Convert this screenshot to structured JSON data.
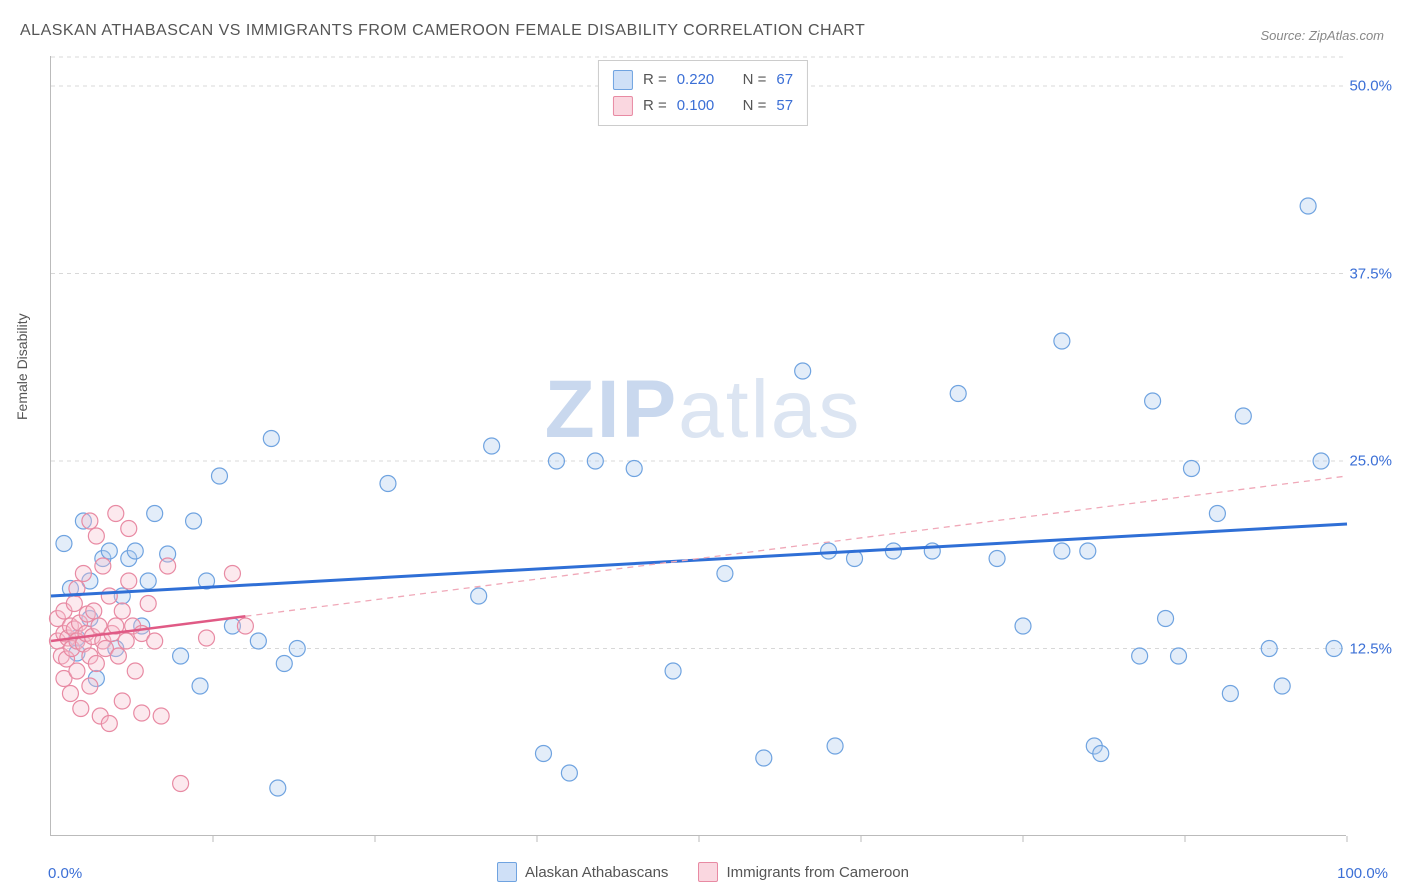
{
  "title": "ALASKAN ATHABASCAN VS IMMIGRANTS FROM CAMEROON FEMALE DISABILITY CORRELATION CHART",
  "source": "Source: ZipAtlas.com",
  "y_axis_label": "Female Disability",
  "watermark_zip": "ZIP",
  "watermark_atlas": "atlas",
  "chart": {
    "type": "scatter",
    "xlim": [
      0,
      100
    ],
    "ylim": [
      0,
      52
    ],
    "y_ticks": [
      12.5,
      25.0,
      37.5,
      50.0
    ],
    "y_tick_labels": [
      "12.5%",
      "25.0%",
      "37.5%",
      "50.0%"
    ],
    "x_ticks": [
      12.5,
      25,
      37.5,
      50,
      62.5,
      75,
      87.5,
      100
    ],
    "x_min_label": "0.0%",
    "x_max_label": "100.0%",
    "background_color": "#ffffff",
    "grid_color": "#d8d8d8",
    "marker_radius": 8,
    "marker_stroke_width": 1.2,
    "marker_fill_opacity": 0.35,
    "series": [
      {
        "name": "Alaskan Athabascans",
        "color_fill": "#aecbef",
        "color_stroke": "#6fa3e0",
        "swatch_fill": "#cfe0f7",
        "swatch_border": "#6fa3e0",
        "r": "0.220",
        "n": "67",
        "trend_color": "#2f6fd6",
        "trend_width": 3,
        "trend_dash": "",
        "trend_start": [
          0,
          16.0
        ],
        "trend_end": [
          100,
          20.8
        ],
        "points": [
          [
            1,
            19.5
          ],
          [
            1.5,
            16.5
          ],
          [
            2,
            13.2
          ],
          [
            2,
            12.2
          ],
          [
            2.5,
            21
          ],
          [
            3,
            17
          ],
          [
            3,
            14.5
          ],
          [
            3.5,
            10.5
          ],
          [
            4,
            18.5
          ],
          [
            4.5,
            19
          ],
          [
            5,
            12.5
          ],
          [
            5.5,
            16
          ],
          [
            6,
            18.5
          ],
          [
            6.5,
            19
          ],
          [
            7,
            14
          ],
          [
            7.5,
            17
          ],
          [
            8,
            21.5
          ],
          [
            9,
            18.8
          ],
          [
            10,
            12
          ],
          [
            11,
            21
          ],
          [
            11.5,
            10
          ],
          [
            12,
            17
          ],
          [
            13,
            24
          ],
          [
            14,
            14
          ],
          [
            16,
            13
          ],
          [
            17,
            26.5
          ],
          [
            17.5,
            3.2
          ],
          [
            18,
            11.5
          ],
          [
            19,
            12.5
          ],
          [
            26,
            23.5
          ],
          [
            33,
            16
          ],
          [
            34,
            26
          ],
          [
            38,
            5.5
          ],
          [
            39,
            25
          ],
          [
            40,
            4.2
          ],
          [
            42,
            25
          ],
          [
            45,
            24.5
          ],
          [
            48,
            11
          ],
          [
            52,
            17.5
          ],
          [
            55,
            5.2
          ],
          [
            58,
            31
          ],
          [
            60,
            19
          ],
          [
            60.5,
            6
          ],
          [
            62,
            18.5
          ],
          [
            65,
            19
          ],
          [
            68,
            19
          ],
          [
            70,
            29.5
          ],
          [
            73,
            18.5
          ],
          [
            75,
            14
          ],
          [
            78,
            33
          ],
          [
            78,
            19
          ],
          [
            80,
            19
          ],
          [
            80.5,
            6
          ],
          [
            81,
            5.5
          ],
          [
            84,
            12
          ],
          [
            85,
            29
          ],
          [
            86,
            14.5
          ],
          [
            87,
            12
          ],
          [
            88,
            24.5
          ],
          [
            90,
            21.5
          ],
          [
            91,
            9.5
          ],
          [
            92,
            28
          ],
          [
            94,
            12.5
          ],
          [
            95,
            10
          ],
          [
            97,
            42
          ],
          [
            98,
            25
          ],
          [
            99,
            12.5
          ]
        ]
      },
      {
        "name": "Immigrants from Cameroon",
        "color_fill": "#f6c0cd",
        "color_stroke": "#e88aa3",
        "swatch_fill": "#fad7e0",
        "swatch_border": "#e88aa3",
        "r": "0.100",
        "n": "57",
        "trend_color": "#e05a85",
        "trend_solid_width": 2.5,
        "trend_solid_end_x": 15,
        "trend_dash_color": "#f0a8b8",
        "trend_dash": "6,5",
        "trend_dash_width": 1.3,
        "trend_start": [
          0,
          13.0
        ],
        "trend_end": [
          100,
          24.0
        ],
        "points": [
          [
            0.5,
            13
          ],
          [
            0.5,
            14.5
          ],
          [
            0.8,
            12
          ],
          [
            1,
            13.5
          ],
          [
            1,
            10.5
          ],
          [
            1,
            15
          ],
          [
            1.2,
            11.8
          ],
          [
            1.3,
            13.2
          ],
          [
            1.5,
            14
          ],
          [
            1.5,
            9.5
          ],
          [
            1.6,
            12.5
          ],
          [
            1.8,
            13.8
          ],
          [
            1.8,
            15.5
          ],
          [
            2,
            11
          ],
          [
            2,
            13
          ],
          [
            2,
            16.5
          ],
          [
            2.2,
            14.2
          ],
          [
            2.3,
            8.5
          ],
          [
            2.5,
            12.8
          ],
          [
            2.5,
            17.5
          ],
          [
            2.7,
            13.5
          ],
          [
            2.8,
            14.8
          ],
          [
            3,
            12
          ],
          [
            3,
            10
          ],
          [
            3,
            21
          ],
          [
            3.2,
            13.3
          ],
          [
            3.3,
            15
          ],
          [
            3.5,
            11.5
          ],
          [
            3.5,
            20
          ],
          [
            3.7,
            14
          ],
          [
            3.8,
            8
          ],
          [
            4,
            13
          ],
          [
            4,
            18
          ],
          [
            4.2,
            12.5
          ],
          [
            4.5,
            16
          ],
          [
            4.5,
            7.5
          ],
          [
            4.7,
            13.5
          ],
          [
            5,
            14
          ],
          [
            5,
            21.5
          ],
          [
            5.2,
            12
          ],
          [
            5.5,
            15
          ],
          [
            5.5,
            9
          ],
          [
            5.8,
            13
          ],
          [
            6,
            20.5
          ],
          [
            6,
            17
          ],
          [
            6.3,
            14
          ],
          [
            6.5,
            11
          ],
          [
            7,
            13.5
          ],
          [
            7,
            8.2
          ],
          [
            7.5,
            15.5
          ],
          [
            8,
            13
          ],
          [
            8.5,
            8
          ],
          [
            9,
            18
          ],
          [
            10,
            3.5
          ],
          [
            12,
            13.2
          ],
          [
            14,
            17.5
          ],
          [
            15,
            14
          ]
        ]
      }
    ]
  },
  "top_legend": {
    "r_label": "R =",
    "n_label": "N ="
  },
  "bottom_legend_labels": [
    "Alaskan Athabascans",
    "Immigrants from Cameroon"
  ]
}
